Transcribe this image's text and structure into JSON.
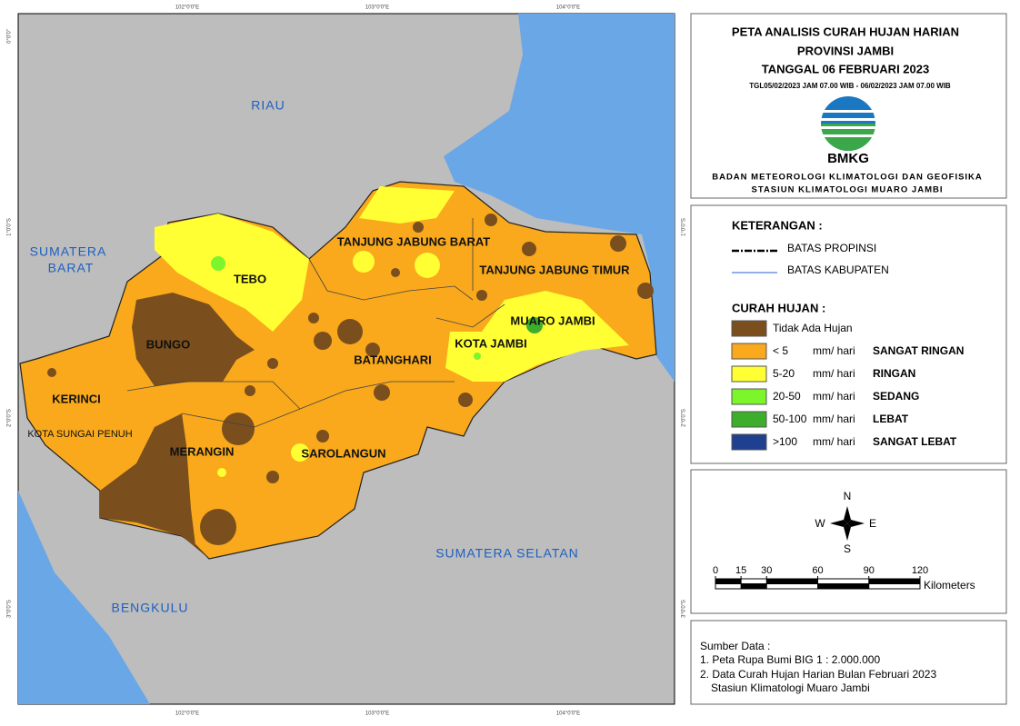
{
  "title": {
    "line1": "PETA ANALISIS CURAH HUJAN HARIAN",
    "line2": "PROVINSI JAMBI",
    "line3": "TANGGAL 06 FEBRUARI 2023",
    "period": "TGL05/02/2023 JAM 07.00 WIB - 06/02/2023 JAM 07.00 WIB"
  },
  "agency": {
    "logo": "BMKG",
    "name": "BADAN METEOROLOGI KLIMATOLOGI DAN GEOFISIKA",
    "station": "STASIUN KLIMATOLOGI MUARO JAMBI"
  },
  "legend": {
    "heading": "KETERANGAN :",
    "boundaries": [
      "BATAS PROPINSI",
      "BATAS KABUPATEN"
    ],
    "rain_heading": "CURAH HUJAN :",
    "classes": [
      {
        "range": "Tidak Ada Hujan",
        "color": "#7a4e1d"
      },
      {
        "range": "< 5",
        "unit": "mm/ hari",
        "category": "SANGAT RINGAN",
        "color": "#f9a91b"
      },
      {
        "range": "5-20",
        "unit": "mm/ hari",
        "category": "RINGAN",
        "color": "#ffff33"
      },
      {
        "range": "20-50",
        "unit": "mm/ hari",
        "category": "SEDANG",
        "color": "#7cf52a"
      },
      {
        "range": "50-100",
        "unit": "mm/ hari",
        "category": "LEBAT",
        "color": "#3dae2b"
      },
      {
        "range": ">100",
        "unit": "mm/ hari",
        "category": "SANGAT LEBAT",
        "color": "#1f3f8f"
      }
    ]
  },
  "compass": {
    "n": "N",
    "e": "E",
    "s": "S",
    "w": "W"
  },
  "scale": {
    "labels": [
      0,
      15,
      30,
      60,
      90,
      120
    ],
    "unit": "Kilometers"
  },
  "source": {
    "heading": "Sumber Data :",
    "lines": [
      "1. Peta Rupa Bumi BIG 1 : 2.000.000",
      "2. Data Curah Hujan Harian Bulan Februari 2023",
      "Stasiun Klimatologi Muaro Jambi"
    ]
  },
  "map": {
    "neighbors": [
      "RIAU",
      "SUMATERA",
      "BARAT",
      "BENGKULU",
      "SUMATERA SELATAN"
    ],
    "regions": [
      "TEBO",
      "BUNGO",
      "KERINCI",
      "KOTA SUNGAI PENUH",
      "MERANGIN",
      "SAROLANGUN",
      "BATANGHARI",
      "TANJUNG JABUNG BARAT",
      "TANJUNG JABUNG TIMUR",
      "MUARO JAMBI",
      "KOTA JAMBI"
    ],
    "coords_top": [
      "102°0'0\"E",
      "103°0'0\"E",
      "104°0'0\"E"
    ],
    "coords_left": [
      "0°0'0\"",
      "1°0'0\"S",
      "2°0'0\"S",
      "3°0'0\"S"
    ]
  }
}
